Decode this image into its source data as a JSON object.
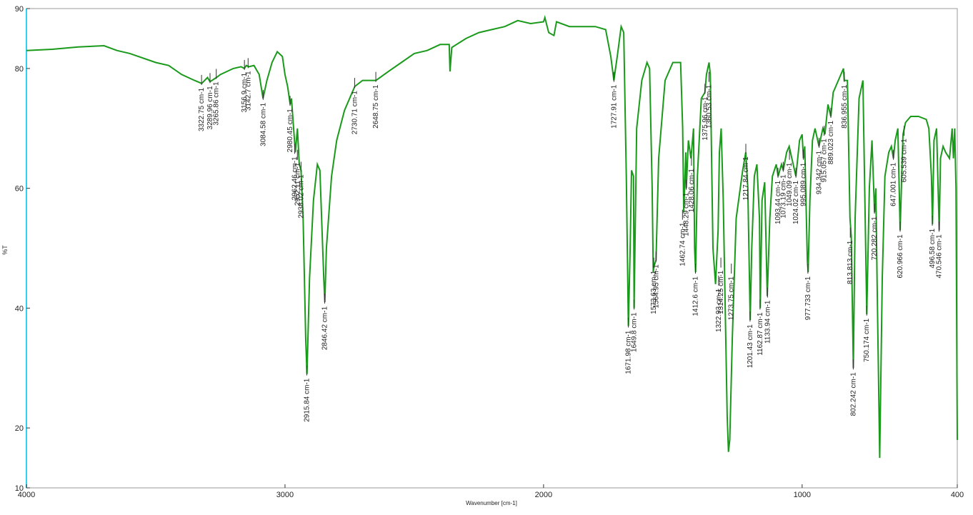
{
  "chart_data": {
    "type": "line",
    "y_label": "%T",
    "x_label": "Wavenumber [cm-1]",
    "xlim": [
      4000,
      400
    ],
    "ylim": [
      10,
      90
    ],
    "xticks": [
      4000,
      3000,
      2000,
      1000,
      400
    ],
    "yticks": [
      10,
      20,
      40,
      60,
      80,
      90
    ],
    "color": "#1a9a1a",
    "axis_color": "#30d0f0",
    "x": [
      4000,
      3900,
      3800,
      3700,
      3650,
      3600,
      3500,
      3450,
      3400,
      3350,
      3322,
      3300,
      3290,
      3265,
      3250,
      3200,
      3170,
      3157,
      3150,
      3140,
      3120,
      3100,
      3085,
      3070,
      3050,
      3030,
      3010,
      3000,
      2990,
      2980,
      2975,
      2965,
      2960,
      2952,
      2945,
      2938,
      2930,
      2920,
      2915,
      2905,
      2890,
      2875,
      2865,
      2850,
      2846,
      2840,
      2820,
      2800,
      2770,
      2740,
      2730,
      2700,
      2648,
      2600,
      2550,
      2500,
      2450,
      2400,
      2365,
      2362,
      2355,
      2300,
      2250,
      2200,
      2150,
      2100,
      2050,
      2000,
      1995,
      1980,
      1960,
      1950,
      1900,
      1850,
      1800,
      1760,
      1740,
      1728,
      1715,
      1700,
      1690,
      1680,
      1672,
      1665,
      1660,
      1652,
      1650,
      1640,
      1620,
      1600,
      1590,
      1580,
      1576,
      1573,
      1565,
      1555,
      1530,
      1500,
      1470,
      1462,
      1458,
      1450,
      1448,
      1440,
      1430,
      1420,
      1416,
      1412,
      1405,
      1390,
      1376,
      1370,
      1360,
      1355,
      1345,
      1335,
      1325,
      1320,
      1313,
      1305,
      1290,
      1285,
      1280,
      1270,
      1255,
      1230,
      1218,
      1210,
      1201,
      1195,
      1185,
      1175,
      1165,
      1162,
      1155,
      1145,
      1135,
      1125,
      1115,
      1100,
      1093,
      1080,
      1073,
      1060,
      1050,
      1040,
      1024,
      1010,
      1000,
      995,
      990,
      980,
      977,
      970,
      960,
      950,
      935,
      920,
      912,
      900,
      889,
      880,
      870,
      860,
      840,
      837,
      825,
      815,
      810,
      802,
      795,
      780,
      765,
      750,
      740,
      730,
      720,
      715,
      710,
      700,
      690,
      680,
      665,
      655,
      647,
      640,
      630,
      621,
      610,
      600,
      580,
      550,
      520,
      510,
      500,
      496,
      490,
      480,
      470,
      465,
      455,
      445,
      430,
      420,
      415,
      410,
      405,
      400
    ],
    "values": [
      83,
      83.2,
      83.6,
      83.8,
      83,
      82.5,
      81,
      80.5,
      79,
      78,
      77.5,
      78.5,
      77.8,
      78.5,
      79,
      80,
      80.3,
      80,
      80.5,
      80.3,
      80.5,
      79,
      75,
      78,
      81,
      82.8,
      82,
      79,
      77,
      74,
      75,
      69,
      66,
      70,
      64,
      63,
      55,
      35,
      29,
      45,
      58,
      64,
      63,
      45,
      41,
      50,
      62,
      68,
      73,
      76,
      77,
      78,
      78,
      79.5,
      81,
      82.5,
      83,
      84,
      84,
      79.5,
      83.5,
      85,
      86,
      86.5,
      87,
      88,
      87.5,
      87.8,
      88.5,
      86,
      85.5,
      87.8,
      87,
      87,
      87,
      86.5,
      82,
      78,
      82,
      87,
      86,
      62,
      37,
      50,
      63,
      62,
      40,
      70,
      78,
      81,
      80,
      60,
      46,
      47,
      48,
      65,
      78,
      81,
      81,
      70,
      56,
      66,
      60,
      68,
      65,
      70,
      50,
      46,
      62,
      75,
      76,
      79,
      81,
      79,
      50,
      44,
      53,
      66,
      70,
      58,
      22,
      16,
      18,
      35,
      55,
      63,
      66,
      60,
      38,
      50,
      62,
      64,
      55,
      40,
      58,
      61,
      42,
      55,
      62,
      64,
      62,
      64,
      63,
      66,
      67,
      65,
      62,
      68,
      69,
      65,
      67,
      48,
      46,
      58,
      68,
      70,
      67,
      70,
      69,
      74,
      72,
      76,
      77,
      78,
      80,
      78,
      78,
      55,
      52,
      30,
      55,
      75,
      78,
      39,
      60,
      68,
      56,
      60,
      44,
      15,
      45,
      62,
      66,
      67,
      65,
      68,
      70,
      53,
      69,
      71,
      72,
      72,
      71.5,
      70,
      62,
      54,
      68,
      70,
      53,
      65,
      67,
      66,
      65,
      70,
      65,
      70,
      60,
      18
    ],
    "annotations": [
      {
        "label": "3322.75 cm-1",
        "x": 3322.75,
        "y": 77.5
      },
      {
        "label": "3289.96 cm-1",
        "x": 3289.96,
        "y": 77.8
      },
      {
        "label": "3265.86 cm-1",
        "x": 3265.86,
        "y": 78.5
      },
      {
        "label": "3156.9 cm-1",
        "x": 3156.9,
        "y": 80
      },
      {
        "label": "3142.7 cm-1",
        "x": 3142.7,
        "y": 80.3
      },
      {
        "label": "3084.58 cm-1",
        "x": 3084.58,
        "y": 75
      },
      {
        "label": "2980.45 cm-1",
        "x": 2980.45,
        "y": 74
      },
      {
        "label": "2962.46 cm-1",
        "x": 2962.46,
        "y": 66
      },
      {
        "label": "2952.11 cm-1",
        "x": 2952.11,
        "y": 65
      },
      {
        "label": "2938.02 cm-1",
        "x": 2938.02,
        "y": 63
      },
      {
        "label": "2915.84 cm-1",
        "x": 2915.84,
        "y": 29
      },
      {
        "label": "2846.42 cm-1",
        "x": 2846.42,
        "y": 41
      },
      {
        "label": "2730.71 cm-1",
        "x": 2730.71,
        "y": 77
      },
      {
        "label": "2648.75 cm-1",
        "x": 2648.75,
        "y": 78
      },
      {
        "label": "1727.91 cm-1",
        "x": 1727.91,
        "y": 78
      },
      {
        "label": "1671.98 cm-1",
        "x": 1671.98,
        "y": 37
      },
      {
        "label": "1649.8 cm-1",
        "x": 1649.8,
        "y": 40
      },
      {
        "label": "1573.63 cm-1",
        "x": 1573.63,
        "y": 47
      },
      {
        "label": "1564.95 cm-1",
        "x": 1564.95,
        "y": 48
      },
      {
        "label": "1462.74 cm-1",
        "x": 1462.74,
        "y": 55
      },
      {
        "label": "1448.29 cm-1",
        "x": 1448.29,
        "y": 60
      },
      {
        "label": "1428.06 cm-1",
        "x": 1428.06,
        "y": 64
      },
      {
        "label": "1412.6 cm-1",
        "x": 1412.6,
        "y": 46
      },
      {
        "label": "1375.96 cm-1",
        "x": 1375.96,
        "y": 76
      },
      {
        "label": "1360.53 cm-1",
        "x": 1360.53,
        "y": 78
      },
      {
        "label": "1322.93 cm-1",
        "x": 1322.93,
        "y": 44
      },
      {
        "label": "1314.25 cm-1",
        "x": 1314.25,
        "y": 47
      },
      {
        "label": "1273.75 cm-1",
        "x": 1273.75,
        "y": 46
      },
      {
        "label": "1217.84 cm-1",
        "x": 1217.84,
        "y": 66
      },
      {
        "label": "1201.43 cm-1",
        "x": 1201.43,
        "y": 38
      },
      {
        "label": "1162.87 cm-1",
        "x": 1162.87,
        "y": 40
      },
      {
        "label": "1133.94 cm-1",
        "x": 1133.94,
        "y": 42
      },
      {
        "label": "1093.44 cm-1",
        "x": 1093.44,
        "y": 62
      },
      {
        "label": "1073.19 cm-1",
        "x": 1073.19,
        "y": 63
      },
      {
        "label": "1049.09 cm-1",
        "x": 1049.09,
        "y": 65
      },
      {
        "label": "1024.02 cm-1",
        "x": 1024.02,
        "y": 62
      },
      {
        "label": "995.089 cm-1",
        "x": 995.089,
        "y": 65
      },
      {
        "label": "977.733 cm-1",
        "x": 977.733,
        "y": 46
      },
      {
        "label": "934.342 cm-1",
        "x": 934.342,
        "y": 67
      },
      {
        "label": "915.057 cm-1",
        "x": 915.057,
        "y": 69
      },
      {
        "label": "889.023 cm-1",
        "x": 889.023,
        "y": 72
      },
      {
        "label": "836.955 cm-1",
        "x": 836.955,
        "y": 78
      },
      {
        "label": "813.813 cm-1",
        "x": 813.813,
        "y": 52
      },
      {
        "label": "802.242 cm-1",
        "x": 802.242,
        "y": 30
      },
      {
        "label": "750.174 cm-1",
        "x": 750.174,
        "y": 39
      },
      {
        "label": "720.282 cm-1",
        "x": 720.282,
        "y": 56
      },
      {
        "label": "647.001 cm-1",
        "x": 647.001,
        "y": 65
      },
      {
        "label": "620.966 cm-1",
        "x": 620.966,
        "y": 53
      },
      {
        "label": "605.539 cm-1",
        "x": 605.539,
        "y": 69
      },
      {
        "label": "496.58 cm-1",
        "x": 496.58,
        "y": 54
      },
      {
        "label": "470.546 cm-1",
        "x": 470.546,
        "y": 53
      }
    ]
  }
}
